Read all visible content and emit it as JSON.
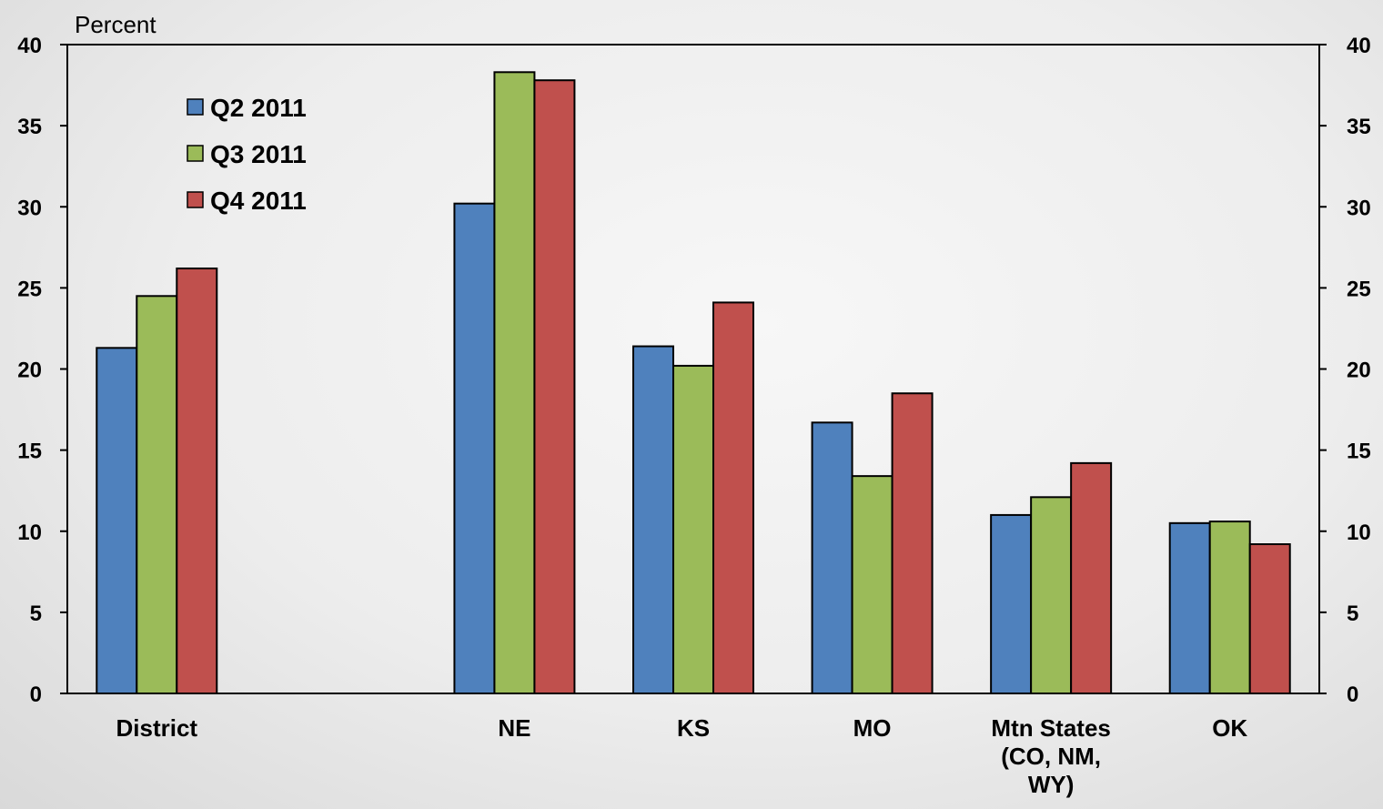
{
  "chart_data": {
    "type": "bar",
    "ylabel": "Percent",
    "ylim": [
      0,
      40
    ],
    "yticks": [
      0,
      5,
      10,
      15,
      20,
      25,
      30,
      35,
      40
    ],
    "legend_position": "top-left",
    "categories": [
      [
        "District"
      ],
      [],
      [
        "NE"
      ],
      [
        "KS"
      ],
      [
        "MO"
      ],
      [
        "Mtn States",
        "(CO, NM,",
        "WY)"
      ],
      [
        "OK"
      ]
    ],
    "series": [
      {
        "name": "Q2 2011",
        "color": "#4f81bd",
        "values": [
          21.3,
          null,
          30.2,
          21.4,
          16.7,
          11.0,
          10.5
        ]
      },
      {
        "name": "Q3 2011",
        "color": "#9bbb59",
        "values": [
          24.5,
          null,
          38.3,
          20.2,
          13.4,
          12.1,
          10.6
        ]
      },
      {
        "name": "Q4 2011",
        "color": "#c0504d",
        "values": [
          26.2,
          null,
          37.8,
          24.1,
          18.5,
          14.2,
          9.2
        ]
      }
    ]
  }
}
